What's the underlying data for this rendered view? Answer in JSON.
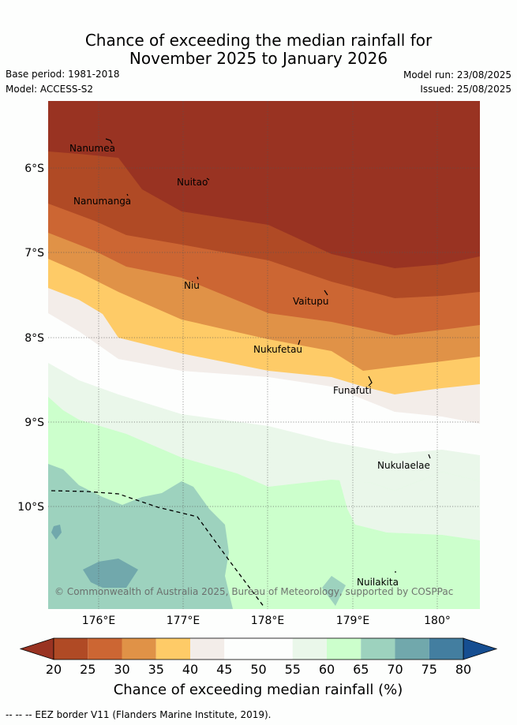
{
  "title_line1": "Chance of exceeding the median rainfall for",
  "title_line2": "November 2025 to January 2026",
  "base_period": "Base period: 1981-2018",
  "model": "Model: ACCESS-S2",
  "model_run": "Model run: 23/08/2025",
  "issued": "Issued: 25/08/2025",
  "map": {
    "lon_ticks": [
      "176°E",
      "177°E",
      "178°E",
      "179°E",
      "180°"
    ],
    "lat_ticks": [
      "6°S",
      "7°S",
      "8°S",
      "9°S",
      "10°S"
    ],
    "places": [
      "Nanumea",
      "Nuitao",
      "Nanumanga",
      "Niu",
      "Vaitupu",
      "Nukufetau",
      "Funafuti",
      "Nukulaelae",
      "Nuilakita"
    ],
    "copyright": "© Commonwealth of Australia 2025, Bureau of Meteorology, supported by COSPPac",
    "eez_line_style": "dashed"
  },
  "colorbar": {
    "ticks": [
      "20",
      "25",
      "30",
      "35",
      "40",
      "45",
      "50",
      "55",
      "60",
      "65",
      "70",
      "75",
      "80"
    ],
    "title": "Chance of exceeding median rainfall (%)",
    "bin_colors": [
      "#993322",
      "#b04a25",
      "#cc6633",
      "#e09247",
      "#fecb67",
      "#f3ede9",
      "#fdfefd",
      "#fdfefd",
      "#eaf7ea",
      "#ccffcc",
      "#9dd2be",
      "#71a8ac",
      "#437ea0",
      "#164e91"
    ]
  },
  "footer": "--  --  -- EEZ border V11 (Flanders Marine Institute, 2019)."
}
